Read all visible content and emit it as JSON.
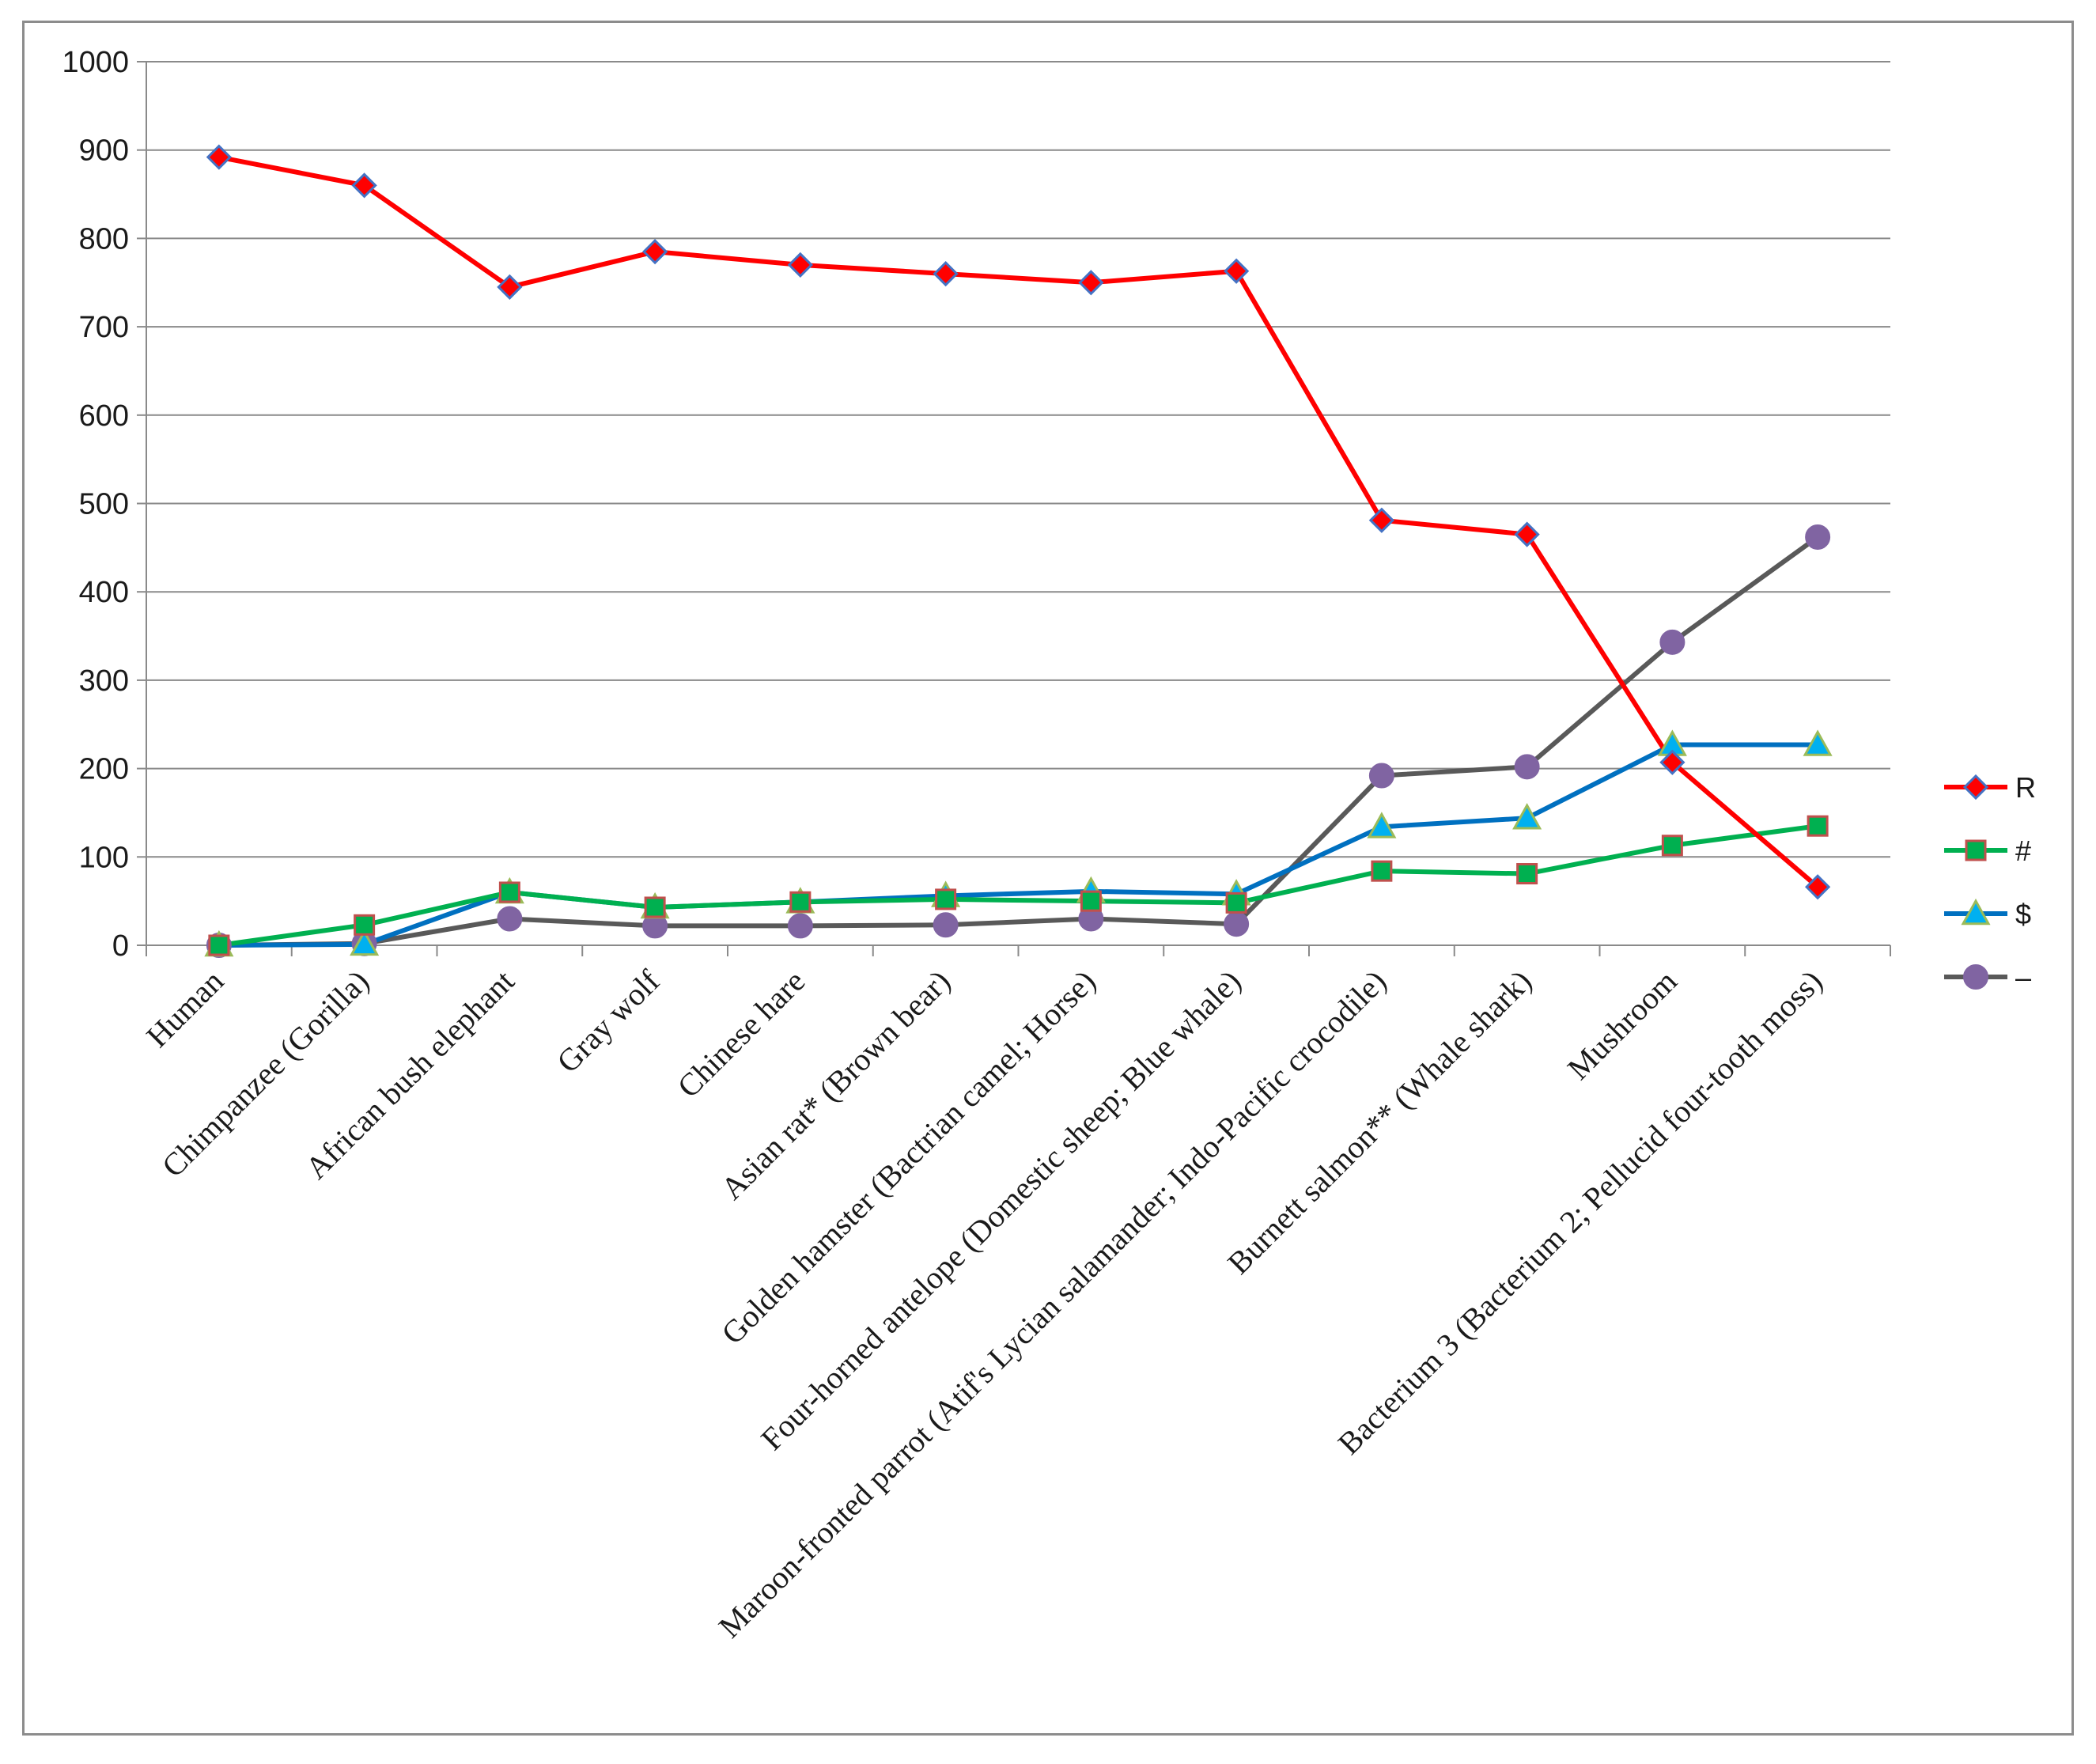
{
  "chart_data": {
    "type": "line",
    "title": "",
    "xlabel": "",
    "ylabel": "",
    "ylim": [
      0,
      1000
    ],
    "yticks": [
      "0",
      "100",
      "200",
      "300",
      "400",
      "500",
      "600",
      "700",
      "800",
      "900",
      "1000"
    ],
    "grid": "horizontal",
    "legend_position": "right",
    "categories": [
      "Human",
      "Chimpanzee (Gorilla)",
      "African bush elephant",
      "Gray wolf",
      "Chinese hare",
      "Asian rat* (Brown bear)",
      "Golden hamster (Bactrian camel; Horse)",
      "Four-horned antelope (Domestic sheep; Blue whale)",
      "Maroon-fronted parrot (Atif's Lycian salamander; Indo-Pacific crocodile)",
      "Burnett salmon** (Whale shark)",
      "Mushroom",
      "Bacterium 3 (Bacterium 2; Pellucid four-tooth moss)"
    ],
    "series": [
      {
        "name": "R",
        "color": "#ff0000",
        "marker": "diamond",
        "marker_fill": "#ff0000",
        "marker_stroke": "#4472c4",
        "values": [
          892,
          860,
          745,
          785,
          770,
          760,
          750,
          763,
          481,
          465,
          207,
          66
        ]
      },
      {
        "name": "#",
        "color": "#00b050",
        "marker": "square",
        "marker_fill": "#00b050",
        "marker_stroke": "#c0504d",
        "values": [
          0,
          23,
          60,
          43,
          49,
          52,
          50,
          48,
          84,
          81,
          113,
          135
        ]
      },
      {
        "name": "$",
        "color": "#0070c0",
        "marker": "triangle",
        "marker_fill": "#00b0f0",
        "marker_stroke": "#9bbb59",
        "values": [
          0,
          1,
          60,
          43,
          49,
          56,
          61,
          58,
          134,
          144,
          227,
          227
        ]
      },
      {
        "name": "–",
        "color": "#595959",
        "marker": "circle",
        "marker_fill": "#8064a2",
        "marker_stroke": "#8064a2",
        "values": [
          0,
          2,
          30,
          22,
          22,
          23,
          30,
          24,
          192,
          202,
          343,
          462
        ]
      }
    ]
  }
}
